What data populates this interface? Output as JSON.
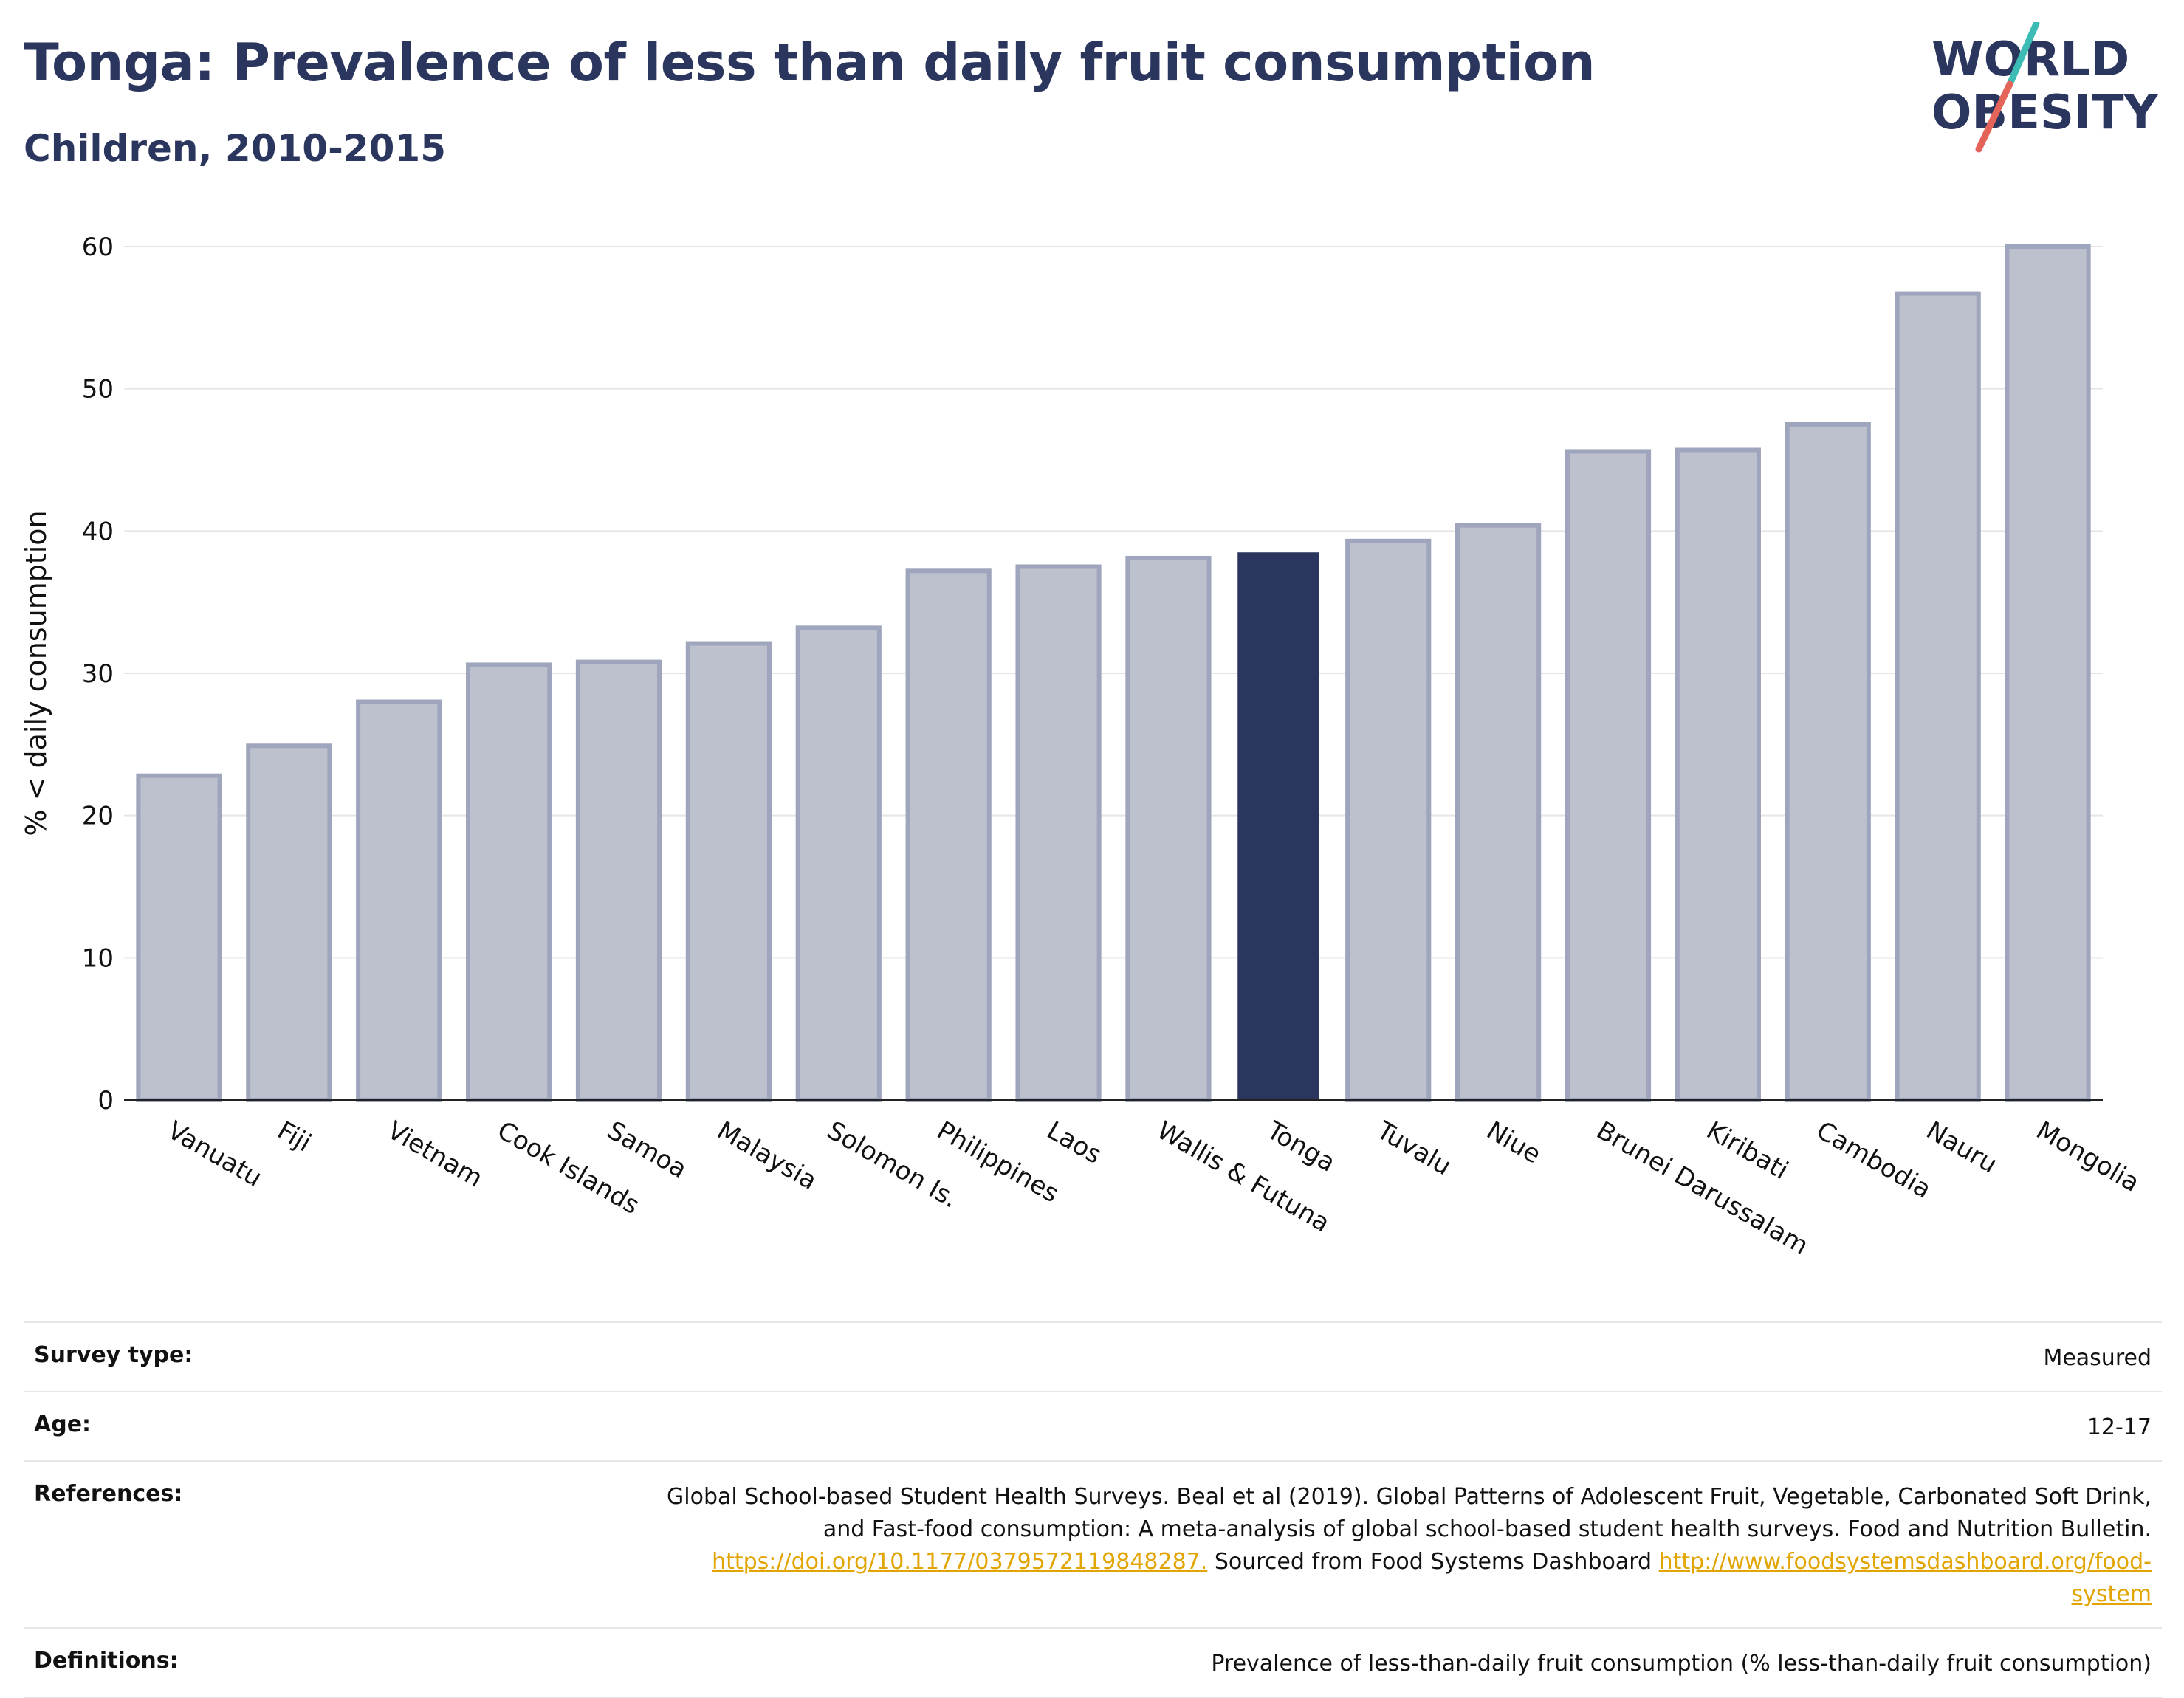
{
  "header": {
    "title": "Tonga: Prevalence of less than daily fruit consumption",
    "subtitle": "Children, 2010-2015"
  },
  "logo": {
    "line1": "WORLD",
    "line2": "OBESITY"
  },
  "colors": {
    "highlight": "#2b365e",
    "bar_fill": "#bdc1ce",
    "bar_stroke": "#9fa5bc",
    "grid": "#e5e5e5",
    "logo_teal": "#3dbcb5",
    "logo_coral": "#e5645a",
    "link": "#e2a400"
  },
  "chart_data": {
    "type": "bar",
    "categories": [
      "Vanuatu",
      "Fiji",
      "Vietnam",
      "Cook Islands",
      "Samoa",
      "Malaysia",
      "Solomon Is.",
      "Philippines",
      "Laos",
      "Wallis & Futuna",
      "Tonga",
      "Tuvalu",
      "Niue",
      "Brunei Darussalam",
      "Kiribati",
      "Cambodia",
      "Nauru",
      "Mongolia"
    ],
    "values": [
      22.8,
      24.9,
      28.0,
      30.6,
      30.8,
      32.1,
      33.2,
      37.2,
      37.5,
      38.1,
      38.5,
      39.3,
      40.4,
      45.6,
      45.7,
      47.5,
      56.7,
      60.0
    ],
    "highlight": "Tonga",
    "title": "Tonga: Prevalence of less than daily fruit consumption",
    "subtitle": "Children, 2010-2015",
    "xlabel": "",
    "ylabel": "% < daily consumption",
    "ylim": [
      0,
      60
    ],
    "yticks": [
      0,
      10,
      20,
      30,
      40,
      50,
      60
    ],
    "grid": true,
    "legend": "none"
  },
  "info": {
    "survey_type_label": "Survey type:",
    "survey_type_value": "Measured",
    "age_label": "Age:",
    "age_value": "12-17",
    "references_label": "References:",
    "references_line1": "Global School-based Student Health Surveys. Beal et al (2019). Global Patterns of Adolescent Fruit, Vegetable, Carbonated Soft Drink,",
    "references_line2": "and Fast-food consumption: A meta-analysis of global school-based student health surveys. Food and Nutrition Bulletin.",
    "references_link1": "https://doi.org/10.1177/0379572119848287.",
    "references_mid": " Sourced from Food Systems Dashboard ",
    "references_link2a": "http://www.foodsystemsdashboard.org/food-",
    "references_link2b": "system",
    "definitions_label": "Definitions:",
    "definitions_value": "Prevalence of less-than-daily fruit consumption (% less-than-daily fruit consumption)"
  }
}
